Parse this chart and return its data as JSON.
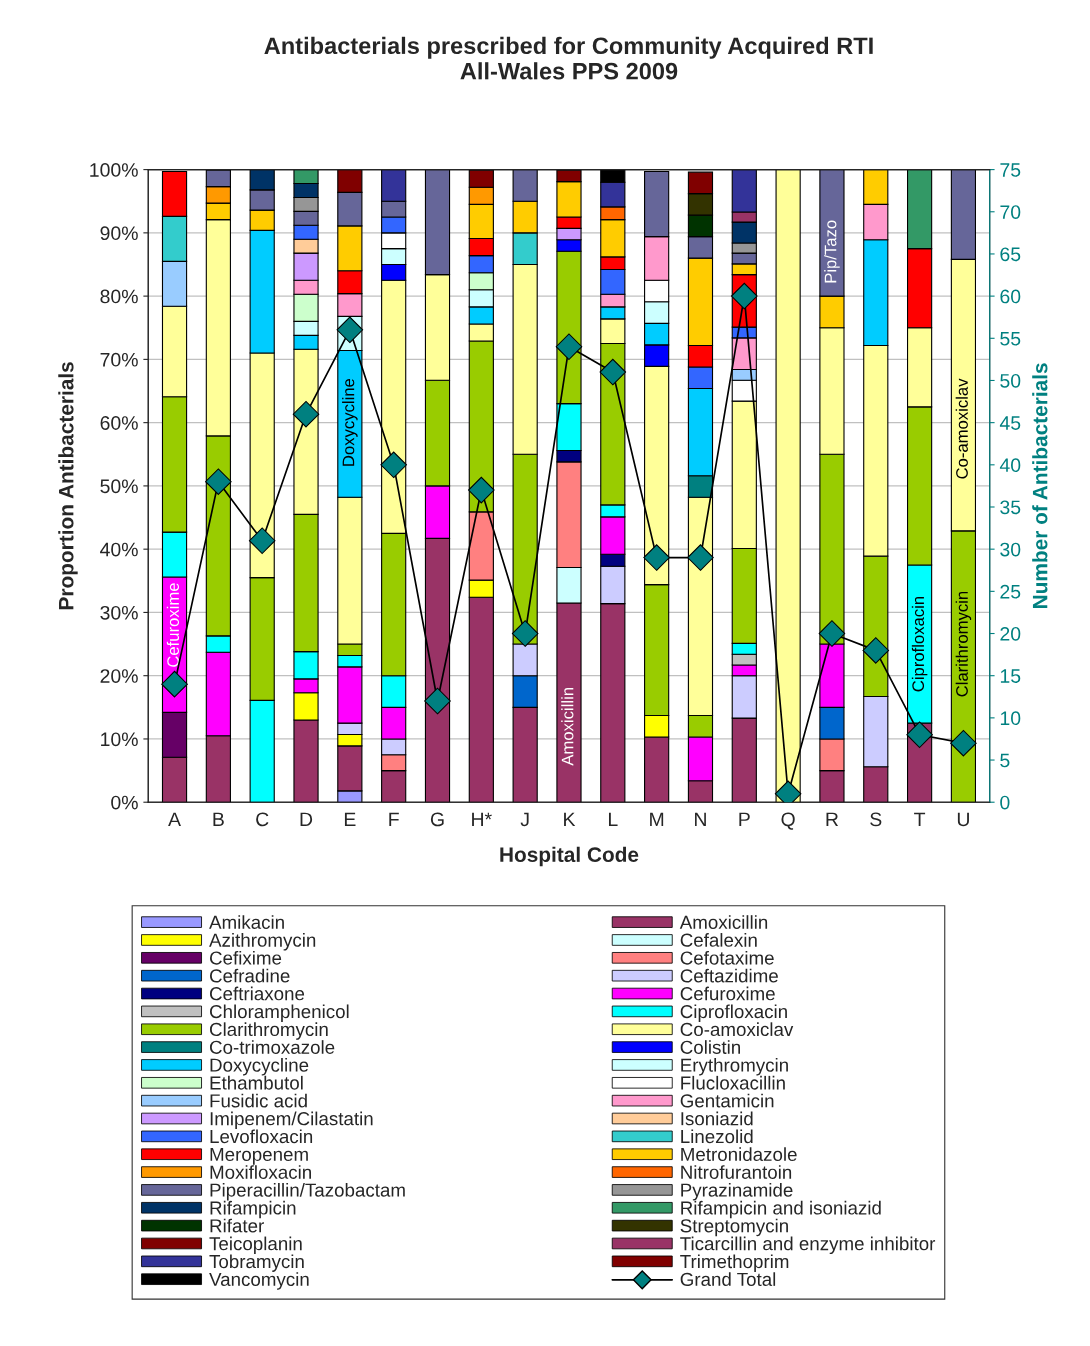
{
  "chart_data": {
    "type": "bar",
    "stacked": true,
    "title": "Antibacterials prescribed for Community Acquired RTI\nAll-Wales PPS 2009",
    "xlabel": "Hospital Code",
    "ylabel": "Proportion Antibacterials",
    "y2label": "Number of Antibacterials",
    "categories": [
      "A",
      "B",
      "C",
      "D",
      "E",
      "F",
      "G",
      "H*",
      "J",
      "K",
      "L",
      "M",
      "N",
      "P",
      "Q",
      "R",
      "S",
      "T",
      "U"
    ],
    "ylim": [
      0,
      100
    ],
    "yticks": [
      {
        "value": 0,
        "label": "0%"
      },
      {
        "value": 10,
        "label": "10%"
      },
      {
        "value": 20,
        "label": "20%"
      },
      {
        "value": 30,
        "label": "30%"
      },
      {
        "value": 40,
        "label": "40%"
      },
      {
        "value": 50,
        "label": "50%"
      },
      {
        "value": 60,
        "label": "60%"
      },
      {
        "value": 70,
        "label": "70%"
      },
      {
        "value": 80,
        "label": "80%"
      },
      {
        "value": 90,
        "label": "90%"
      },
      {
        "value": 100,
        "label": "100%"
      }
    ],
    "y2lim": [
      0,
      75
    ],
    "y2ticks": [
      0,
      5,
      10,
      15,
      20,
      25,
      30,
      35,
      40,
      45,
      50,
      55,
      60,
      65,
      70,
      75
    ],
    "grid": "y",
    "legend": "bottom",
    "annotations": [
      "Cefuroxime",
      "Doxycycline",
      "Amoxicillin",
      "Pip/Tazo",
      "Ciprofloxacin",
      "Clarithromycin",
      "Co-amoxiclav"
    ],
    "series": [
      {
        "name": "Amikacin",
        "color": "#9999ff",
        "values": [
          null,
          null,
          null,
          null,
          1.8,
          null,
          null,
          null,
          null,
          null,
          null,
          null,
          null,
          null,
          null,
          null,
          null,
          null,
          null
        ]
      },
      {
        "name": "Amoxicillin",
        "color": "#993366",
        "values": [
          7.1,
          10.5,
          null,
          13.0,
          7.1,
          5.0,
          41.7,
          32.4,
          15.0,
          31.5,
          31.4,
          10.3,
          3.4,
          13.3,
          null,
          5.0,
          5.6,
          12.5,
          null
        ]
      },
      {
        "name": "Azithromycin",
        "color": "#ffff00",
        "values": [
          null,
          null,
          null,
          4.3,
          1.8,
          null,
          null,
          2.7,
          null,
          null,
          null,
          3.4,
          null,
          null,
          null,
          null,
          null,
          null,
          null
        ]
      },
      {
        "name": "Cefalexin",
        "color": "#ccffff",
        "values": [
          null,
          null,
          null,
          null,
          null,
          null,
          null,
          null,
          null,
          5.6,
          null,
          null,
          null,
          null,
          null,
          null,
          null,
          null,
          null
        ]
      },
      {
        "name": "Cefixime",
        "color": "#660066",
        "values": [
          7.1,
          null,
          null,
          null,
          null,
          null,
          null,
          null,
          null,
          null,
          null,
          null,
          null,
          null,
          null,
          null,
          null,
          null,
          null
        ]
      },
      {
        "name": "Cefotaxime",
        "color": "#ff8080",
        "values": [
          null,
          null,
          null,
          null,
          null,
          2.5,
          null,
          10.8,
          null,
          16.7,
          null,
          null,
          null,
          null,
          null,
          5.0,
          null,
          null,
          null
        ]
      },
      {
        "name": "Cefradine",
        "color": "#0066cc",
        "values": [
          null,
          null,
          null,
          null,
          null,
          null,
          null,
          null,
          5.0,
          null,
          null,
          null,
          null,
          null,
          null,
          5.0,
          null,
          null,
          null
        ]
      },
      {
        "name": "Ceftazidime",
        "color": "#ccccff",
        "values": [
          null,
          null,
          null,
          null,
          1.8,
          2.5,
          null,
          null,
          5.0,
          null,
          5.9,
          null,
          null,
          6.7,
          null,
          null,
          11.1,
          null,
          null
        ]
      },
      {
        "name": "Ceftriaxone",
        "color": "#000080",
        "values": [
          null,
          null,
          null,
          null,
          null,
          null,
          null,
          null,
          null,
          1.8,
          1.9,
          null,
          null,
          null,
          null,
          null,
          null,
          null,
          null
        ]
      },
      {
        "name": "Cefuroxime",
        "color": "#ff00ff",
        "values": [
          21.4,
          13.2,
          null,
          2.2,
          8.9,
          5.0,
          8.3,
          null,
          null,
          null,
          5.9,
          null,
          6.9,
          1.7,
          null,
          10.0,
          null,
          null,
          null
        ]
      },
      {
        "name": "Chloramphenicol",
        "color": "#c0c0c0",
        "values": [
          null,
          null,
          null,
          null,
          null,
          null,
          null,
          null,
          null,
          null,
          null,
          null,
          null,
          1.7,
          null,
          null,
          null,
          null,
          null
        ]
      },
      {
        "name": "Ciprofloxacin",
        "color": "#00ffff",
        "values": [
          7.1,
          2.6,
          16.1,
          4.3,
          1.8,
          5.0,
          null,
          null,
          null,
          7.4,
          1.9,
          null,
          null,
          1.7,
          null,
          null,
          null,
          25.0,
          null
        ]
      },
      {
        "name": "Clarithromycin",
        "color": "#99cc00",
        "values": [
          21.4,
          31.6,
          19.4,
          21.7,
          1.8,
          22.5,
          16.7,
          27.0,
          30.0,
          24.1,
          25.5,
          20.7,
          3.4,
          15.0,
          null,
          30.0,
          22.2,
          25.0,
          42.9
        ]
      },
      {
        "name": "Co-amoxiclav",
        "color": "#ffff99",
        "values": [
          14.3,
          34.2,
          35.5,
          26.1,
          23.2,
          40.0,
          16.7,
          2.7,
          30.0,
          null,
          3.9,
          34.5,
          34.5,
          23.3,
          100,
          20.0,
          33.3,
          12.5,
          42.9
        ]
      },
      {
        "name": "Co-trimoxazole",
        "color": "#008080",
        "values": [
          null,
          null,
          null,
          null,
          null,
          null,
          null,
          null,
          null,
          null,
          null,
          null,
          3.4,
          null,
          null,
          null,
          null,
          null,
          null
        ]
      },
      {
        "name": "Colistin",
        "color": "#0000ff",
        "values": [
          null,
          null,
          null,
          null,
          null,
          2.5,
          null,
          null,
          null,
          1.8,
          null,
          3.4,
          null,
          null,
          null,
          null,
          null,
          null,
          null
        ]
      },
      {
        "name": "Doxycycline",
        "color": "#00ccff",
        "values": [
          null,
          null,
          19.4,
          2.2,
          23.2,
          null,
          null,
          2.7,
          null,
          null,
          1.9,
          3.4,
          13.8,
          null,
          null,
          null,
          16.7,
          null,
          null
        ]
      },
      {
        "name": "Erythromycin",
        "color": "#ccffff",
        "values": [
          null,
          null,
          null,
          2.2,
          5.4,
          2.5,
          null,
          2.7,
          null,
          null,
          null,
          3.4,
          null,
          null,
          null,
          null,
          null,
          null,
          null
        ]
      },
      {
        "name": "Ethambutol",
        "color": "#ccffcc",
        "values": [
          null,
          null,
          null,
          4.3,
          null,
          null,
          null,
          2.7,
          null,
          null,
          null,
          null,
          null,
          null,
          null,
          null,
          null,
          null,
          null
        ]
      },
      {
        "name": "Flucloxacillin",
        "color": "#ffffff",
        "values": [
          null,
          null,
          null,
          null,
          null,
          2.5,
          null,
          null,
          null,
          null,
          null,
          3.4,
          null,
          3.3,
          null,
          null,
          null,
          null,
          null
        ]
      },
      {
        "name": "Fusidic acid",
        "color": "#99ccff",
        "values": [
          7.1,
          null,
          null,
          null,
          null,
          null,
          null,
          null,
          null,
          null,
          null,
          null,
          null,
          1.7,
          null,
          null,
          null,
          null,
          null
        ]
      },
      {
        "name": "Gentamicin",
        "color": "#ff99cc",
        "values": [
          null,
          null,
          null,
          2.2,
          3.6,
          null,
          null,
          null,
          null,
          null,
          2.0,
          6.9,
          null,
          5.0,
          null,
          null,
          5.6,
          null,
          null
        ]
      },
      {
        "name": "Imipenem/Cilastatin",
        "color": "#cc99ff",
        "values": [
          null,
          null,
          null,
          4.3,
          null,
          null,
          null,
          null,
          null,
          1.8,
          null,
          null,
          null,
          null,
          null,
          null,
          null,
          null,
          null
        ]
      },
      {
        "name": "Isoniazid",
        "color": "#ffcc99",
        "values": [
          null,
          null,
          null,
          2.2,
          null,
          null,
          null,
          null,
          null,
          null,
          null,
          null,
          null,
          null,
          null,
          null,
          null,
          null,
          null
        ]
      },
      {
        "name": "Levofloxacin",
        "color": "#3366ff",
        "values": [
          null,
          null,
          null,
          2.2,
          null,
          2.5,
          null,
          2.7,
          null,
          null,
          3.9,
          null,
          3.4,
          1.7,
          null,
          null,
          null,
          null,
          null
        ]
      },
      {
        "name": "Linezolid",
        "color": "#33cccc",
        "values": [
          7.1,
          null,
          null,
          null,
          null,
          null,
          null,
          null,
          5.0,
          null,
          null,
          null,
          null,
          null,
          null,
          null,
          null,
          null,
          null
        ]
      },
      {
        "name": "Meropenem",
        "color": "#ff0000",
        "values": [
          7.1,
          null,
          null,
          null,
          3.6,
          null,
          null,
          2.7,
          null,
          1.8,
          2.0,
          null,
          3.4,
          8.3,
          null,
          null,
          null,
          12.5,
          null
        ]
      },
      {
        "name": "Metronidazole",
        "color": "#ffcc00",
        "values": [
          null,
          2.6,
          3.2,
          null,
          7.1,
          null,
          null,
          5.4,
          5.0,
          5.6,
          5.9,
          null,
          13.8,
          1.7,
          null,
          5.0,
          5.5,
          null,
          null
        ]
      },
      {
        "name": "Moxifloxacin",
        "color": "#ff9900",
        "values": [
          null,
          2.6,
          null,
          null,
          null,
          null,
          null,
          2.7,
          null,
          null,
          null,
          null,
          null,
          null,
          null,
          null,
          null,
          null,
          null
        ]
      },
      {
        "name": "Nitrofurantoin",
        "color": "#ff6600",
        "values": [
          null,
          null,
          null,
          null,
          null,
          null,
          null,
          null,
          null,
          null,
          2.0,
          null,
          null,
          null,
          null,
          null,
          null,
          null,
          null
        ]
      },
      {
        "name": "Piperacillin/Tazobactam",
        "color": "#666699",
        "values": [
          null,
          2.6,
          3.2,
          2.2,
          5.3,
          2.5,
          16.6,
          null,
          5.0,
          null,
          null,
          10.3,
          3.4,
          1.7,
          null,
          20.0,
          null,
          null,
          14.2
        ]
      },
      {
        "name": "Pyrazinamide",
        "color": "#969696",
        "values": [
          null,
          null,
          null,
          2.2,
          null,
          null,
          null,
          null,
          null,
          null,
          null,
          null,
          null,
          1.6,
          null,
          null,
          null,
          null,
          null
        ]
      },
      {
        "name": "Rifampicin",
        "color": "#003366",
        "values": [
          null,
          null,
          3.2,
          2.2,
          null,
          null,
          null,
          null,
          null,
          null,
          null,
          null,
          null,
          3.3,
          null,
          null,
          null,
          null,
          null
        ]
      },
      {
        "name": "Rifampicin and isoniazid",
        "color": "#339966",
        "values": [
          null,
          null,
          null,
          2.2,
          null,
          null,
          null,
          null,
          null,
          null,
          null,
          null,
          null,
          null,
          null,
          null,
          null,
          12.5,
          null
        ]
      },
      {
        "name": "Rifater",
        "color": "#003300",
        "values": [
          null,
          null,
          null,
          null,
          null,
          null,
          null,
          null,
          null,
          null,
          null,
          null,
          3.4,
          null,
          null,
          null,
          null,
          null,
          null
        ]
      },
      {
        "name": "Streptomycin",
        "color": "#333300",
        "values": [
          null,
          null,
          null,
          null,
          null,
          null,
          null,
          null,
          null,
          null,
          null,
          null,
          3.4,
          null,
          null,
          null,
          null,
          null,
          null
        ]
      },
      {
        "name": "Teicoplanin",
        "color": "#800000",
        "values": [
          null,
          null,
          null,
          null,
          3.6,
          null,
          null,
          2.7,
          null,
          1.8,
          null,
          null,
          null,
          null,
          null,
          null,
          null,
          null,
          null
        ]
      },
      {
        "name": "Ticarcillin and enzyme inhibitor",
        "color": "#993366",
        "values": [
          null,
          null,
          null,
          null,
          null,
          null,
          null,
          null,
          null,
          null,
          null,
          null,
          null,
          1.6,
          null,
          null,
          null,
          null,
          null
        ]
      },
      {
        "name": "Tobramycin",
        "color": "#333399",
        "values": [
          null,
          null,
          null,
          null,
          null,
          5.0,
          null,
          null,
          null,
          null,
          3.9,
          null,
          null,
          6.7,
          null,
          null,
          null,
          null,
          null
        ]
      },
      {
        "name": "Trimethoprim",
        "color": "#800000",
        "values": [
          null,
          null,
          null,
          null,
          null,
          null,
          null,
          null,
          null,
          null,
          null,
          null,
          3.4,
          null,
          null,
          null,
          null,
          null,
          null
        ]
      },
      {
        "name": "Vancomycin",
        "color": "#000000",
        "values": [
          null,
          null,
          null,
          null,
          null,
          null,
          null,
          null,
          null,
          null,
          2.0,
          null,
          null,
          null,
          null,
          null,
          null,
          null,
          null
        ]
      },
      {
        "name": "Grand Total",
        "type": "line",
        "axis": "y2",
        "color": "#008080",
        "marker": "diamond",
        "values": [
          14,
          38,
          31,
          46,
          56,
          40,
          12,
          37,
          20,
          54,
          51,
          29,
          29,
          60,
          1,
          20,
          18,
          8,
          7
        ]
      }
    ]
  }
}
